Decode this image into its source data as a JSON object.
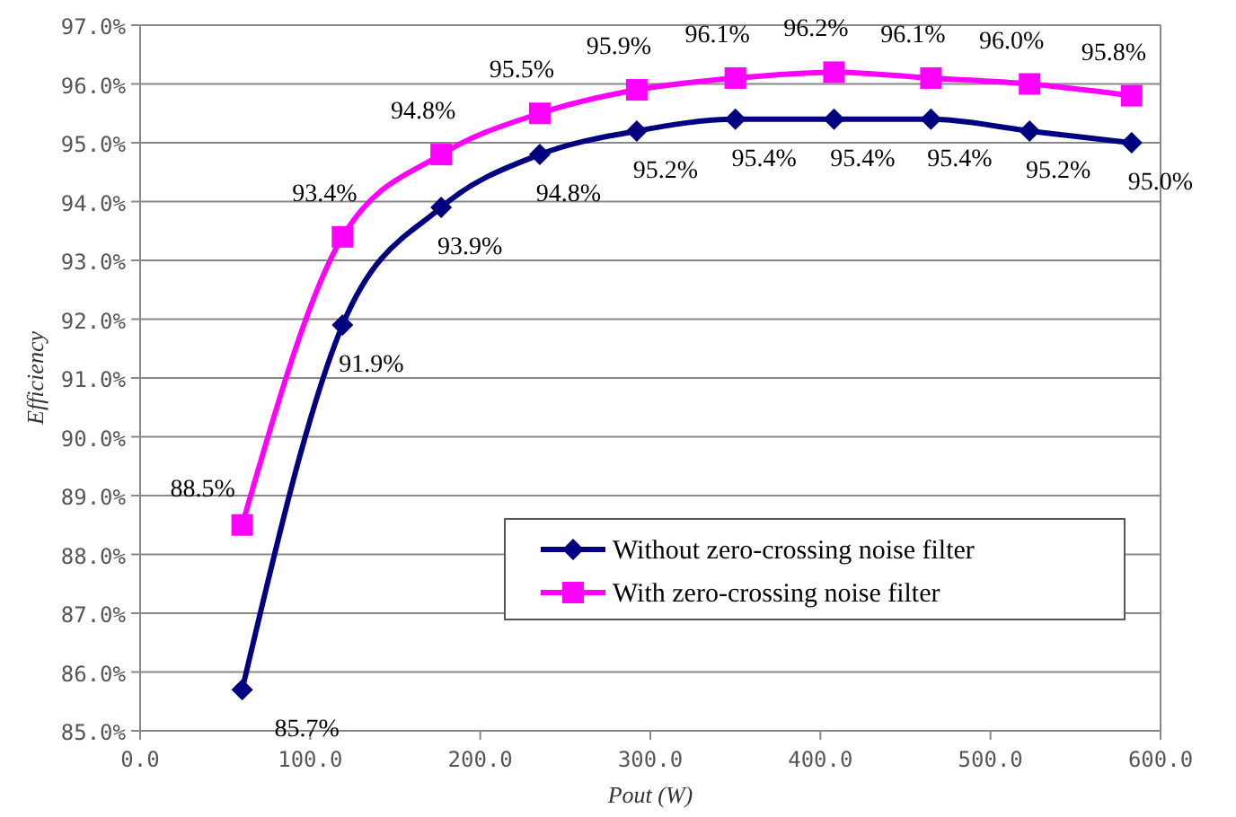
{
  "chart_data": {
    "type": "line",
    "xlabel": "Pout (W)",
    "ylabel": "Efficiency",
    "xlim": [
      0,
      600
    ],
    "xticks": [
      {
        "value": 0,
        "label": "0.0"
      },
      {
        "value": 100,
        "label": "100.0"
      },
      {
        "value": 200,
        "label": "200.0"
      },
      {
        "value": 300,
        "label": "300.0"
      },
      {
        "value": 400,
        "label": "400.0"
      },
      {
        "value": 500,
        "label": "500.0"
      },
      {
        "value": 600,
        "label": "600.0"
      }
    ],
    "ylim": [
      85,
      97
    ],
    "yticks": [
      {
        "value": 85,
        "label": "85.0%"
      },
      {
        "value": 86,
        "label": "86.0%"
      },
      {
        "value": 87,
        "label": "87.0%"
      },
      {
        "value": 88,
        "label": "88.0%"
      },
      {
        "value": 89,
        "label": "89.0%"
      },
      {
        "value": 90,
        "label": "90.0%"
      },
      {
        "value": 91,
        "label": "91.0%"
      },
      {
        "value": 92,
        "label": "92.0%"
      },
      {
        "value": 93,
        "label": "93.0%"
      },
      {
        "value": 94,
        "label": "94.0%"
      },
      {
        "value": 95,
        "label": "95.0%"
      },
      {
        "value": 96,
        "label": "96.0%"
      },
      {
        "value": 97,
        "label": "97.0%"
      }
    ],
    "x": [
      60,
      119,
      177,
      235,
      292,
      350,
      408,
      465,
      523,
      583
    ],
    "series": [
      {
        "name": "Without zero-crossing noise filter",
        "color": "#000080",
        "marker": "diamond",
        "values": [
          85.7,
          91.9,
          93.9,
          94.8,
          95.2,
          95.4,
          95.4,
          95.4,
          95.2,
          95.0
        ],
        "value_labels": [
          "85.7%",
          "91.9%",
          "93.9%",
          "94.8%",
          "95.2%",
          "95.4%",
          "95.4%",
          "95.4%",
          "95.2%",
          "95.0%"
        ]
      },
      {
        "name": "With zero-crossing noise filter",
        "color": "#ff00ff",
        "marker": "square",
        "values": [
          88.5,
          93.4,
          94.8,
          95.5,
          95.9,
          96.1,
          96.2,
          96.1,
          96.0,
          95.8
        ],
        "value_labels": [
          "88.5%",
          "93.4%",
          "94.8%",
          "95.5%",
          "95.9%",
          "96.1%",
          "96.2%",
          "96.1%",
          "96.0%",
          "95.8%"
        ]
      }
    ],
    "grid": "y",
    "legend": "bottom right",
    "line_style": "solid"
  }
}
